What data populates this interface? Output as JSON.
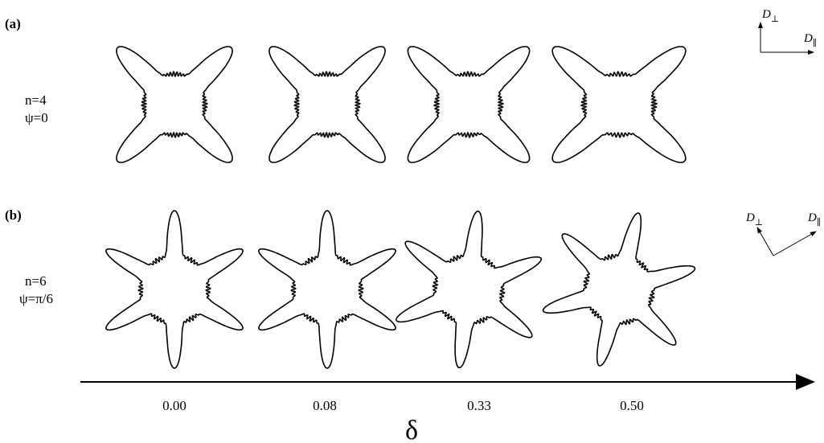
{
  "panels": [
    {
      "label": "(a)",
      "params": [
        "n=4",
        "ψ=0"
      ]
    },
    {
      "label": "(b)",
      "params": [
        "n=6",
        "ψ=π/6"
      ]
    }
  ],
  "axis": {
    "labels": [
      "0.00",
      "0.08",
      "0.33",
      "0.50"
    ],
    "symbol": "δ"
  },
  "frame": {
    "parallel": {
      "symbol": "D",
      "subscript": "∥"
    },
    "perpendicular": {
      "symbol": "D",
      "subscript": "⊥"
    }
  }
}
